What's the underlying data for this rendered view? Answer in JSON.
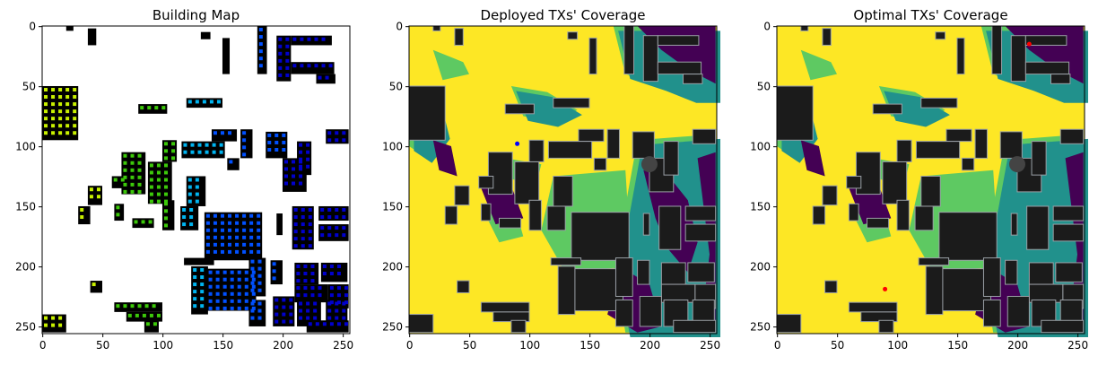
{
  "colors": {
    "building": "#000000",
    "building_dark": "#1b1b1b",
    "background_map": "#ffffff",
    "coverage_high": "#fde725",
    "coverage_mid1": "#5ec962",
    "coverage_mid2": "#21918c",
    "coverage_low2": "#3b528b",
    "coverage_low": "#440154",
    "tx_marker_deployed": "#0000ff",
    "tx_marker_optimal": "#ff0000"
  },
  "chart_data": [
    {
      "type": "heatmap",
      "title": "Building Map",
      "xlabel": "",
      "ylabel": "",
      "xlim": [
        0,
        255
      ],
      "ylim": [
        255,
        0
      ],
      "xticks": [
        0,
        50,
        100,
        150,
        200,
        250
      ],
      "yticks": [
        0,
        50,
        100,
        150,
        200,
        250
      ],
      "grid": false,
      "description_colors": [
        "#000000",
        "#ffffff",
        "#c8f000",
        "#3cc80a",
        "#00b4f0",
        "#0050ff",
        "#0000cd"
      ]
    },
    {
      "type": "heatmap",
      "title": "Deployed TXs' Coverage",
      "xlabel": "",
      "ylabel": "",
      "xlim": [
        0,
        255
      ],
      "ylim": [
        255,
        0
      ],
      "xticks": [
        0,
        50,
        100,
        150,
        200,
        250
      ],
      "yticks": [
        0,
        50,
        100,
        150,
        200,
        250
      ],
      "grid": false,
      "markers": [
        {
          "x": 90,
          "y": 98,
          "color": "#0000ff"
        }
      ]
    },
    {
      "type": "heatmap",
      "title": "Optimal TXs' Coverage",
      "xlabel": "",
      "ylabel": "",
      "xlim": [
        0,
        255
      ],
      "ylim": [
        255,
        0
      ],
      "xticks": [
        0,
        50,
        100,
        150,
        200,
        250
      ],
      "yticks": [
        0,
        50,
        100,
        150,
        200,
        250
      ],
      "grid": false,
      "markers": [
        {
          "x": 90,
          "y": 219,
          "color": "#ff0000"
        },
        {
          "x": 210,
          "y": 15,
          "color": "#ff0000"
        }
      ]
    }
  ]
}
